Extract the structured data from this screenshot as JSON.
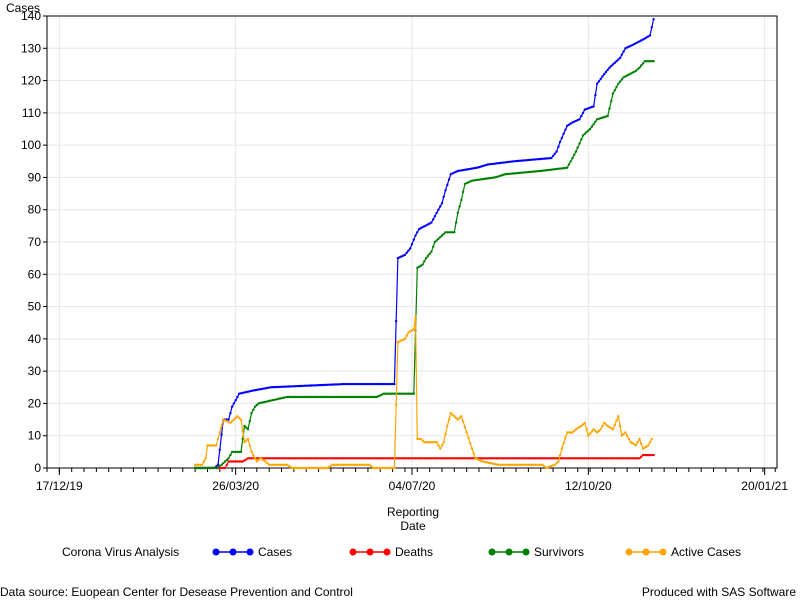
{
  "chart_data": {
    "type": "line",
    "ylabel": "Cases",
    "xlabel_lines": [
      "Reporting",
      "Date"
    ],
    "ylim": [
      0,
      140
    ],
    "y_ticks": [
      0,
      10,
      20,
      30,
      40,
      50,
      60,
      70,
      80,
      90,
      100,
      110,
      120,
      130,
      140
    ],
    "x_range": [
      "2019-12-10",
      "2021-01-27"
    ],
    "x_ticks": [
      {
        "date": "2019-12-17",
        "label": "17/12/19"
      },
      {
        "date": "2020-03-26",
        "label": "26/03/20"
      },
      {
        "date": "2020-07-04",
        "label": "04/07/20"
      },
      {
        "date": "2020-10-12",
        "label": "12/10/20"
      },
      {
        "date": "2021-01-20",
        "label": "20/01/21"
      }
    ],
    "grid": true,
    "legend_title": "Corona Virus Analysis",
    "legend_position": "bottom",
    "series": [
      {
        "name": "Cases",
        "color": "#0000ff",
        "points": [
          [
            "2020-03-03",
            0
          ],
          [
            "2020-03-14",
            0
          ],
          [
            "2020-03-16",
            1
          ],
          [
            "2020-03-19",
            15
          ],
          [
            "2020-03-22",
            15
          ],
          [
            "2020-03-24",
            19
          ],
          [
            "2020-03-26",
            21
          ],
          [
            "2020-03-28",
            23
          ],
          [
            "2020-04-05",
            24
          ],
          [
            "2020-04-15",
            25
          ],
          [
            "2020-05-27",
            26
          ],
          [
            "2020-06-24",
            26
          ],
          [
            "2020-06-26",
            65
          ],
          [
            "2020-06-30",
            66
          ],
          [
            "2020-07-03",
            68
          ],
          [
            "2020-07-06",
            72
          ],
          [
            "2020-07-08",
            74
          ],
          [
            "2020-07-15",
            76
          ],
          [
            "2020-07-21",
            82
          ],
          [
            "2020-07-23",
            86
          ],
          [
            "2020-07-26",
            91
          ],
          [
            "2020-07-30",
            92
          ],
          [
            "2020-08-10",
            93
          ],
          [
            "2020-08-16",
            94
          ],
          [
            "2020-08-31",
            95
          ],
          [
            "2020-09-21",
            96
          ],
          [
            "2020-09-24",
            98
          ],
          [
            "2020-09-26",
            101
          ],
          [
            "2020-09-30",
            106
          ],
          [
            "2020-10-03",
            107
          ],
          [
            "2020-10-07",
            108
          ],
          [
            "2020-10-10",
            111
          ],
          [
            "2020-10-15",
            112
          ],
          [
            "2020-10-17",
            119
          ],
          [
            "2020-10-21",
            122
          ],
          [
            "2020-10-24",
            124
          ],
          [
            "2020-10-30",
            127
          ],
          [
            "2020-11-02",
            130
          ],
          [
            "2020-11-06",
            131
          ],
          [
            "2020-11-13",
            133
          ],
          [
            "2020-11-16",
            134
          ],
          [
            "2020-11-18",
            139
          ]
        ]
      },
      {
        "name": "Deaths",
        "color": "#ff0000",
        "points": [
          [
            "2020-03-03",
            0
          ],
          [
            "2020-03-20",
            0
          ],
          [
            "2020-03-22",
            2
          ],
          [
            "2020-03-30",
            2
          ],
          [
            "2020-04-02",
            3
          ],
          [
            "2020-11-10",
            3
          ],
          [
            "2020-11-12",
            4
          ],
          [
            "2020-11-18",
            4
          ]
        ]
      },
      {
        "name": "Survivors",
        "color": "#008000",
        "points": [
          [
            "2020-03-03",
            0
          ],
          [
            "2020-03-15",
            0
          ],
          [
            "2020-03-18",
            1
          ],
          [
            "2020-03-22",
            3
          ],
          [
            "2020-03-24",
            5
          ],
          [
            "2020-03-29",
            5
          ],
          [
            "2020-03-31",
            13
          ],
          [
            "2020-04-02",
            12
          ],
          [
            "2020-04-04",
            17
          ],
          [
            "2020-04-06",
            19
          ],
          [
            "2020-04-08",
            20
          ],
          [
            "2020-04-16",
            21
          ],
          [
            "2020-04-24",
            22
          ],
          [
            "2020-06-14",
            22
          ],
          [
            "2020-06-18",
            23
          ],
          [
            "2020-07-05",
            23
          ],
          [
            "2020-07-07",
            62
          ],
          [
            "2020-07-10",
            63
          ],
          [
            "2020-07-12",
            65
          ],
          [
            "2020-07-15",
            67
          ],
          [
            "2020-07-17",
            70
          ],
          [
            "2020-07-19",
            71
          ],
          [
            "2020-07-23",
            73
          ],
          [
            "2020-07-28",
            73
          ],
          [
            "2020-07-30",
            79
          ],
          [
            "2020-08-01",
            83
          ],
          [
            "2020-08-03",
            88
          ],
          [
            "2020-08-07",
            89
          ],
          [
            "2020-08-20",
            90
          ],
          [
            "2020-08-26",
            91
          ],
          [
            "2020-09-15",
            92
          ],
          [
            "2020-09-30",
            93
          ],
          [
            "2020-10-02",
            95
          ],
          [
            "2020-10-05",
            98
          ],
          [
            "2020-10-09",
            103
          ],
          [
            "2020-10-13",
            105
          ],
          [
            "2020-10-17",
            108
          ],
          [
            "2020-10-23",
            109
          ],
          [
            "2020-10-26",
            116
          ],
          [
            "2020-10-29",
            119
          ],
          [
            "2020-11-01",
            121
          ],
          [
            "2020-11-08",
            123
          ],
          [
            "2020-11-10",
            124
          ],
          [
            "2020-11-13",
            126
          ],
          [
            "2020-11-18",
            126
          ]
        ]
      },
      {
        "name": "Active Cases",
        "color": "#ffa500",
        "points": [
          [
            "2020-03-03",
            1
          ],
          [
            "2020-03-07",
            1
          ],
          [
            "2020-03-09",
            3
          ],
          [
            "2020-03-10",
            7
          ],
          [
            "2020-03-15",
            7
          ],
          [
            "2020-03-17",
            11
          ],
          [
            "2020-03-19",
            15
          ],
          [
            "2020-03-23",
            14
          ],
          [
            "2020-03-25",
            15
          ],
          [
            "2020-03-27",
            16
          ],
          [
            "2020-03-29",
            15
          ],
          [
            "2020-03-31",
            8
          ],
          [
            "2020-04-02",
            9
          ],
          [
            "2020-04-04",
            5
          ],
          [
            "2020-04-07",
            2
          ],
          [
            "2020-04-09",
            3
          ],
          [
            "2020-04-12",
            2
          ],
          [
            "2020-04-14",
            1
          ],
          [
            "2020-04-24",
            1
          ],
          [
            "2020-04-27",
            0
          ],
          [
            "2020-05-17",
            0
          ],
          [
            "2020-05-20",
            1
          ],
          [
            "2020-06-10",
            1
          ],
          [
            "2020-06-12",
            0
          ],
          [
            "2020-06-20",
            0
          ],
          [
            "2020-06-24",
            0
          ],
          [
            "2020-06-26",
            39
          ],
          [
            "2020-06-30",
            40
          ],
          [
            "2020-07-02",
            42
          ],
          [
            "2020-07-05",
            43
          ],
          [
            "2020-07-06",
            47
          ],
          [
            "2020-07-07",
            9
          ],
          [
            "2020-07-09",
            9
          ],
          [
            "2020-07-11",
            8
          ],
          [
            "2020-07-18",
            8
          ],
          [
            "2020-07-20",
            6
          ],
          [
            "2020-07-22",
            8
          ],
          [
            "2020-07-24",
            13
          ],
          [
            "2020-07-26",
            17
          ],
          [
            "2020-07-28",
            16
          ],
          [
            "2020-07-30",
            15
          ],
          [
            "2020-08-01",
            16
          ],
          [
            "2020-08-04",
            11
          ],
          [
            "2020-08-07",
            6
          ],
          [
            "2020-08-09",
            3
          ],
          [
            "2020-08-13",
            2
          ],
          [
            "2020-08-22",
            1
          ],
          [
            "2020-09-16",
            1
          ],
          [
            "2020-09-18",
            0
          ],
          [
            "2020-09-23",
            1
          ],
          [
            "2020-09-25",
            2
          ],
          [
            "2020-09-27",
            6
          ],
          [
            "2020-09-30",
            11
          ],
          [
            "2020-10-03",
            11
          ],
          [
            "2020-10-05",
            12
          ],
          [
            "2020-10-08",
            13
          ],
          [
            "2020-10-10",
            14
          ],
          [
            "2020-10-12",
            10
          ],
          [
            "2020-10-15",
            12
          ],
          [
            "2020-10-17",
            11
          ],
          [
            "2020-10-19",
            12
          ],
          [
            "2020-10-21",
            14
          ],
          [
            "2020-10-23",
            13
          ],
          [
            "2020-10-26",
            12
          ],
          [
            "2020-10-29",
            16
          ],
          [
            "2020-10-31",
            10
          ],
          [
            "2020-11-02",
            11
          ],
          [
            "2020-11-05",
            8
          ],
          [
            "2020-11-08",
            7
          ],
          [
            "2020-11-10",
            9
          ],
          [
            "2020-11-12",
            6
          ],
          [
            "2020-11-15",
            7
          ],
          [
            "2020-11-17",
            9
          ]
        ]
      }
    ]
  },
  "footer": {
    "source": "Data source: Euopean Center for Desease Prevention and Control",
    "produced": "Produced with SAS Software"
  }
}
